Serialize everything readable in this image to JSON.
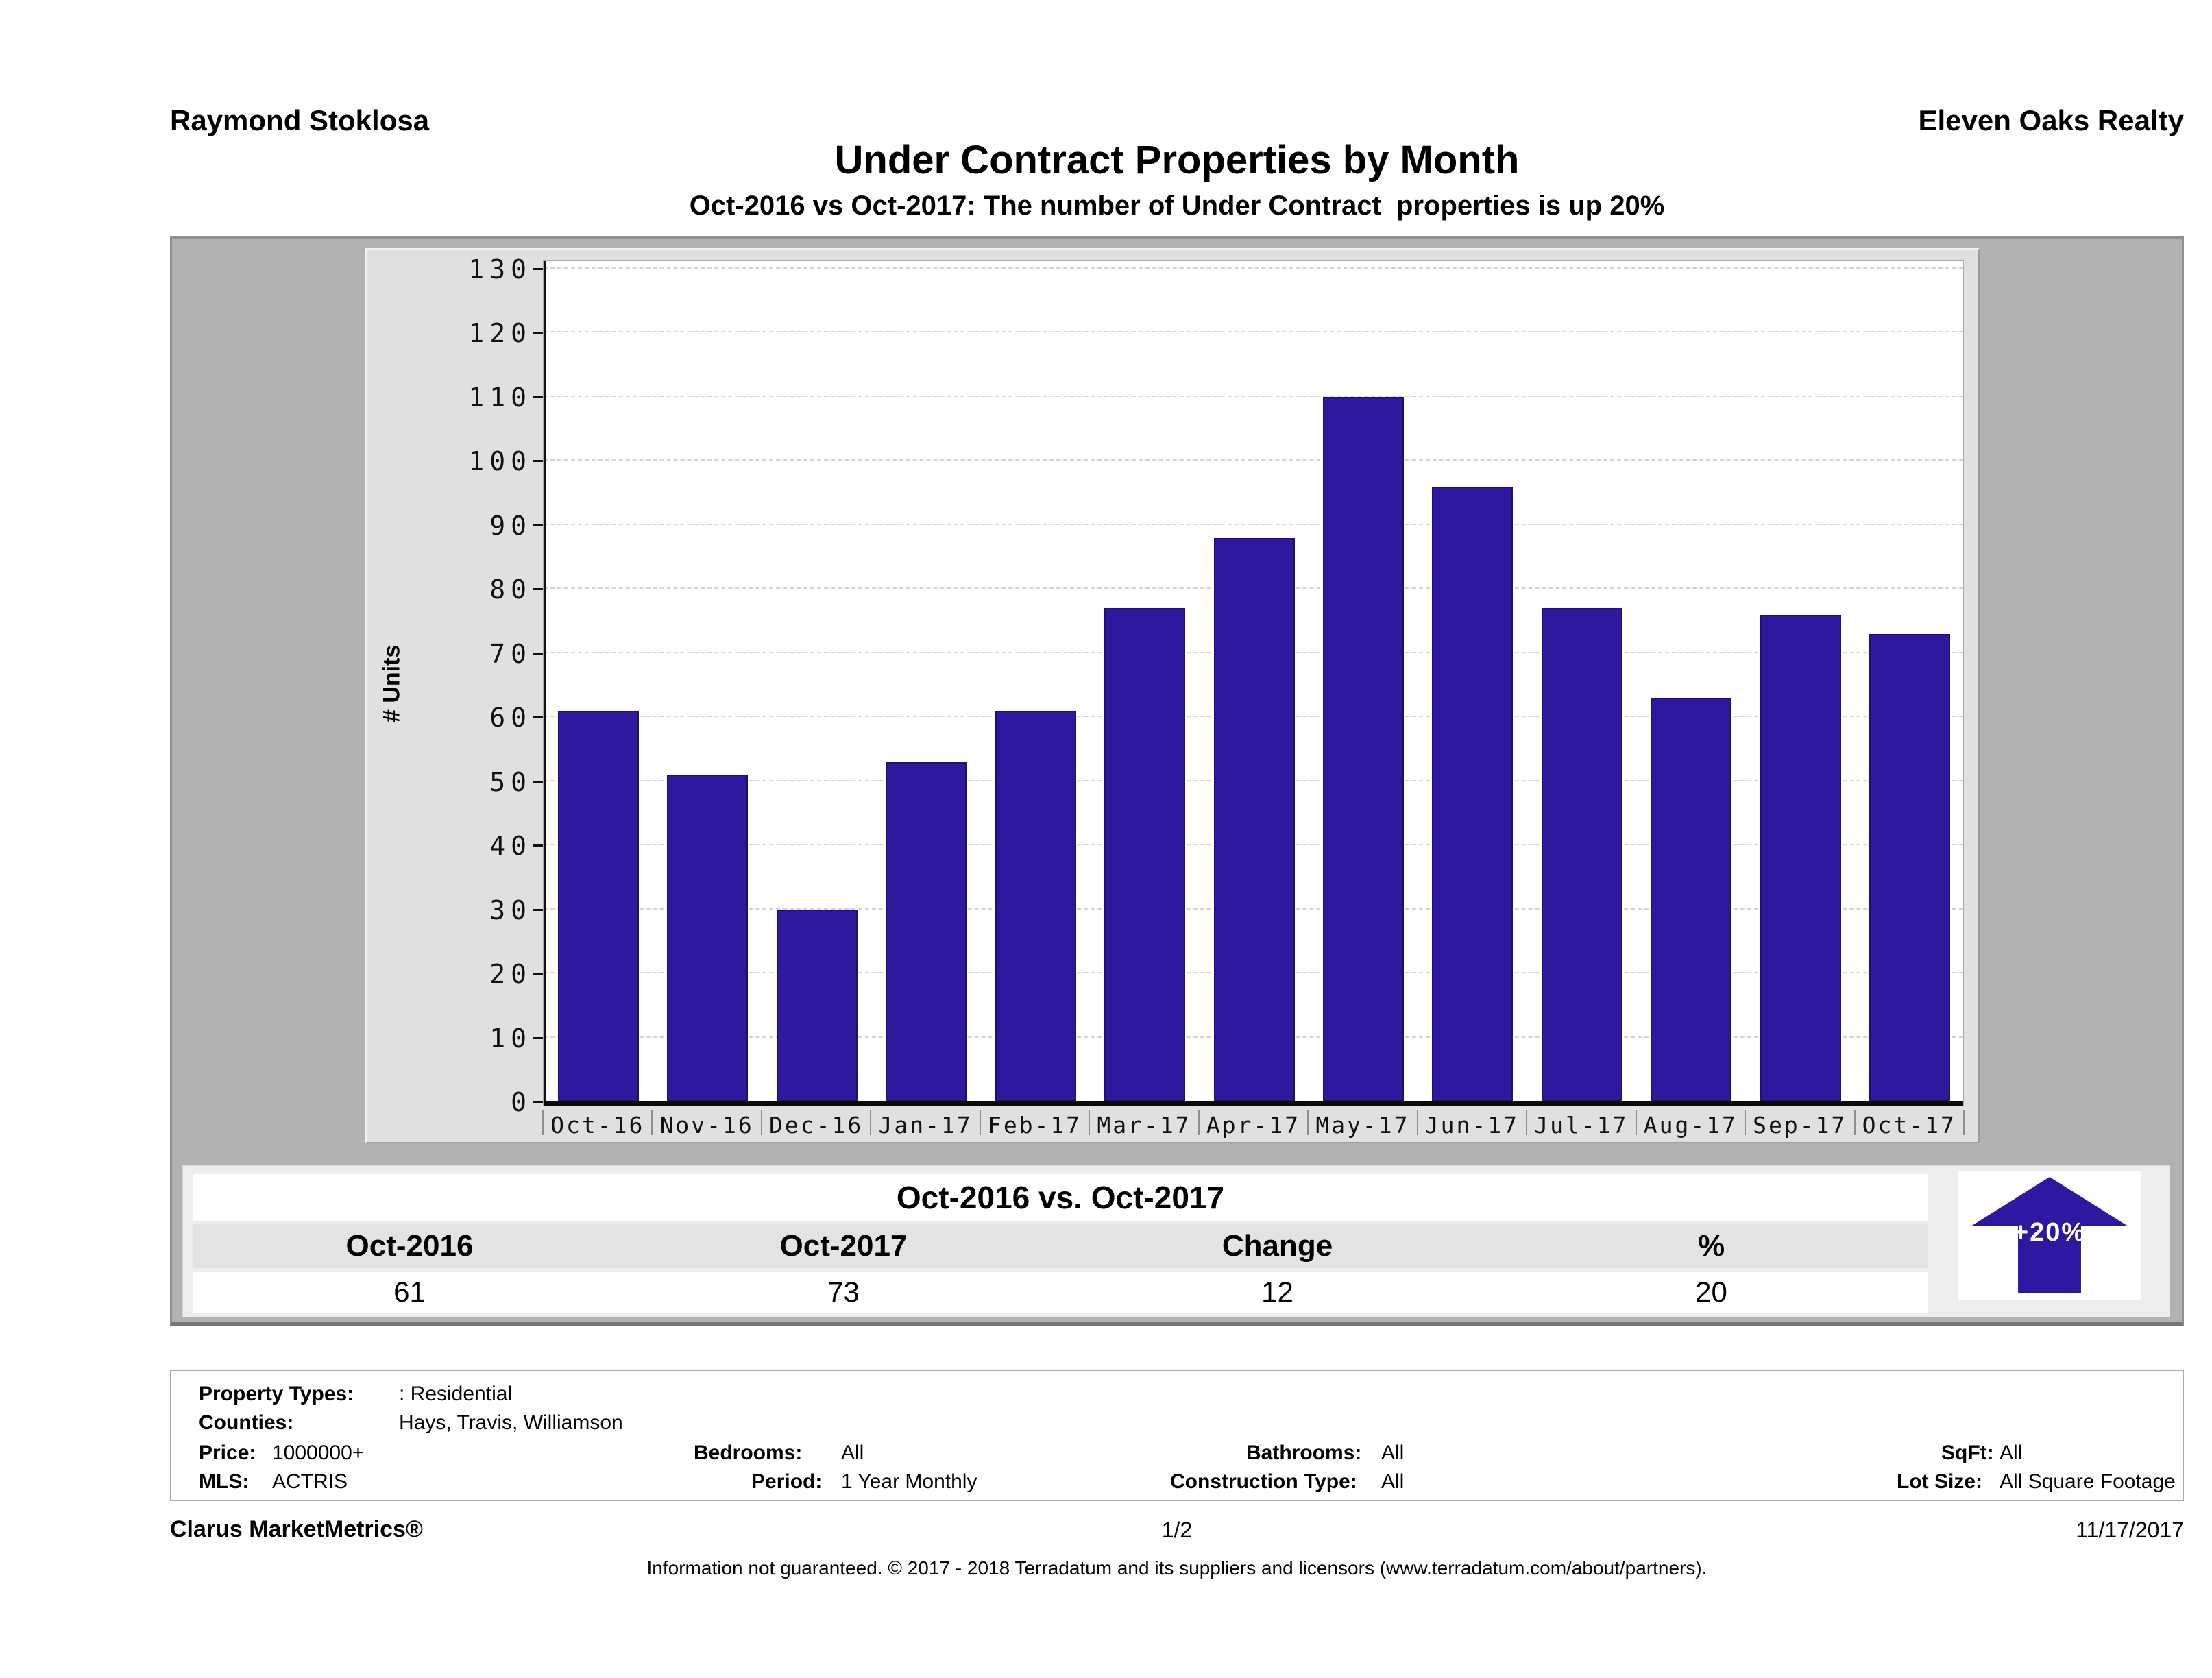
{
  "header": {
    "agent_name": "Raymond Stoklosa",
    "company_name": "Eleven Oaks Realty"
  },
  "chart_data": {
    "type": "bar",
    "title": "Under Contract Properties by Month",
    "subtitle": "Oct-2016 vs Oct-2017: The number of Under Contract  properties is up 20%",
    "ylabel": "# Units",
    "xlabel": "",
    "categories": [
      "Oct-16",
      "Nov-16",
      "Dec-16",
      "Jan-17",
      "Feb-17",
      "Mar-17",
      "Apr-17",
      "May-17",
      "Jun-17",
      "Jul-17",
      "Aug-17",
      "Sep-17",
      "Oct-17"
    ],
    "values": [
      61,
      51,
      30,
      53,
      61,
      77,
      88,
      110,
      96,
      77,
      63,
      76,
      73
    ],
    "ylim": [
      0,
      130
    ],
    "ytick_step": 10,
    "grid": "dashed-horizontal",
    "legend": "none",
    "bar_color": "#2e189e"
  },
  "summary_table": {
    "title": "Oct-2016 vs. Oct-2017",
    "columns": [
      "Oct-2016",
      "Oct-2017",
      "Change",
      "%"
    ],
    "values": [
      "61",
      "73",
      "12",
      "20"
    ],
    "badge_label": "+20%",
    "badge_color": "#2d18a2"
  },
  "filters": {
    "property_types_label": "Property Types:",
    "property_types_value": ": Residential",
    "counties_label": "Counties:",
    "counties_value": "Hays, Travis, Williamson",
    "price_label": "Price:",
    "price_value": "1000000+",
    "bedrooms_label": "Bedrooms:",
    "bedrooms_value": "All",
    "bathrooms_label": "Bathrooms:",
    "bathrooms_value": "All",
    "sqft_label": "SqFt:",
    "sqft_value": "All",
    "mls_label": "MLS:",
    "mls_value": "ACTRIS",
    "period_label": "Period:",
    "period_value": "1 Year Monthly",
    "construction_label": "Construction Type:",
    "construction_value": "All",
    "lot_size_label": "Lot Size:",
    "lot_size_value": "All Square Footage"
  },
  "footer": {
    "brand": "Clarus MarketMetrics®",
    "page_number": "1/2",
    "date": "11/17/2017",
    "disclaimer": "Information not guaranteed. © 2017 - 2018 Terradatum and its suppliers and licensors (www.terradatum.com/about/partners)."
  }
}
